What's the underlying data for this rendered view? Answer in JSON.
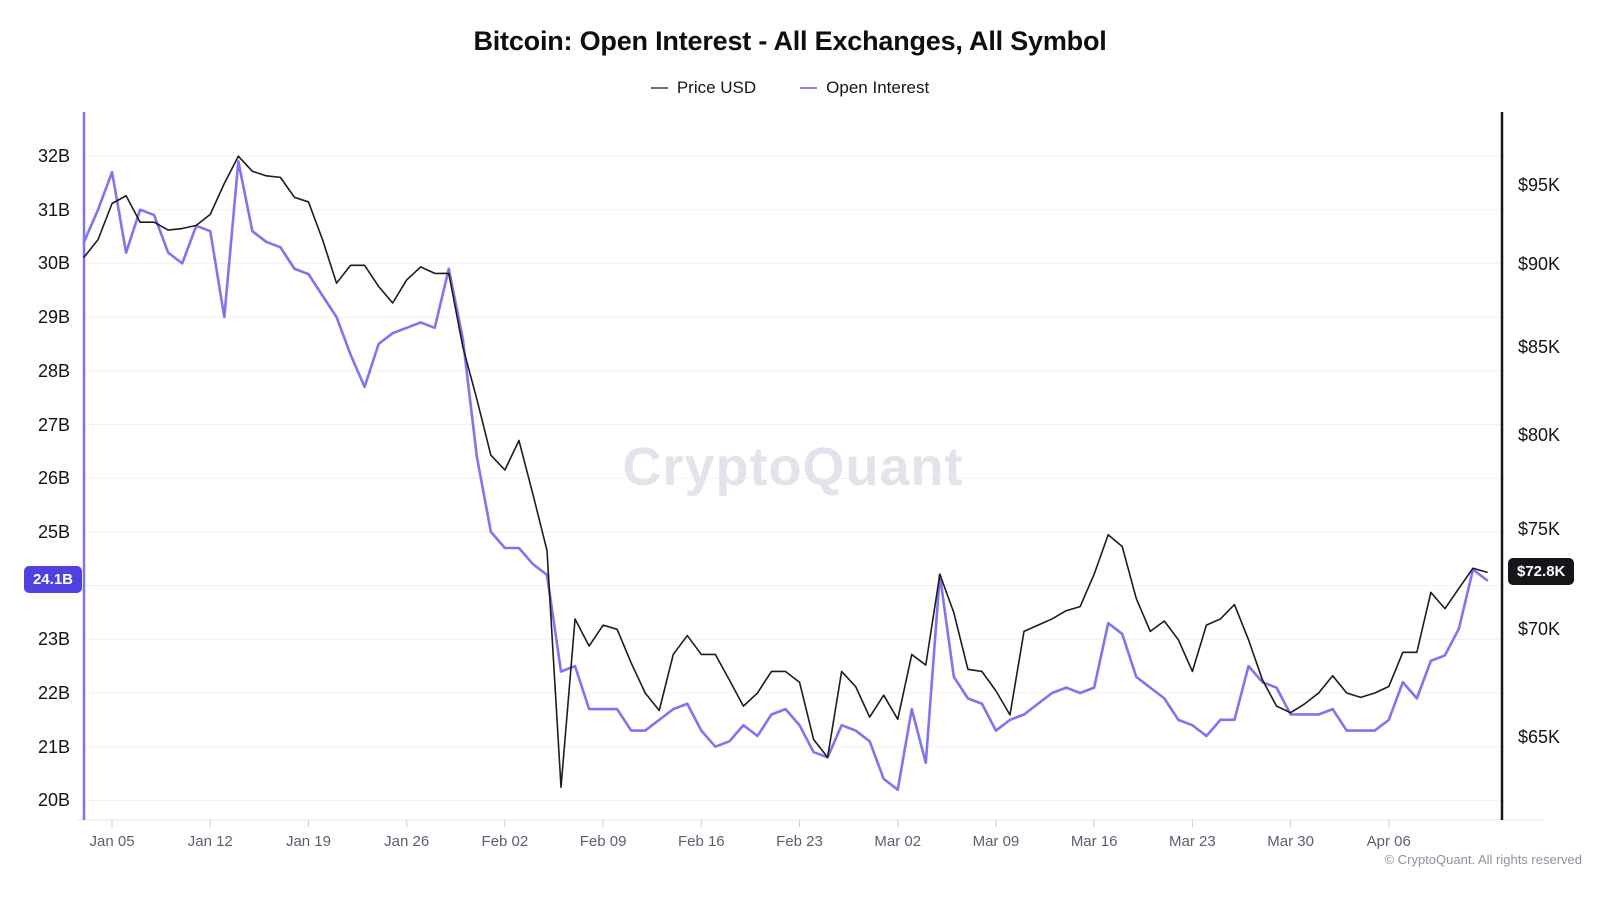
{
  "title": "Bitcoin: Open Interest - All Exchanges, All Symbol",
  "legend": [
    {
      "label": "Price USD",
      "color": "#6e6e78"
    },
    {
      "label": "Open Interest",
      "color": "#8a80f2"
    }
  ],
  "badges": {
    "open_interest": "24.1B",
    "price": "$72.8K"
  },
  "watermark": "CryptoQuant",
  "footer": "© CryptoQuant. All rights reserved",
  "colors": {
    "price_line": "#1c1c22",
    "open_interest_line": "#7f75ee",
    "open_interest_badge_bg": "#4f42e0",
    "price_badge_bg": "#15151a",
    "left_axis": "#7f75ee",
    "right_axis": "#17171c",
    "gridline": "#f1f1f6",
    "baseline": "#e8e8ee",
    "tick_mark": "#c9cbd4"
  },
  "chart_data": {
    "type": "line",
    "title": "Bitcoin: Open Interest - All Exchanges, All Symbol",
    "grid": "horizontal",
    "legend_position": "top-center",
    "x": [
      "Jan 03",
      "Jan 04",
      "Jan 05",
      "Jan 06",
      "Jan 07",
      "Jan 08",
      "Jan 09",
      "Jan 10",
      "Jan 11",
      "Jan 12",
      "Jan 13",
      "Jan 14",
      "Jan 15",
      "Jan 16",
      "Jan 17",
      "Jan 18",
      "Jan 19",
      "Jan 20",
      "Jan 21",
      "Jan 22",
      "Jan 23",
      "Jan 24",
      "Jan 25",
      "Jan 26",
      "Jan 27",
      "Jan 28",
      "Jan 29",
      "Jan 30",
      "Jan 31",
      "Feb 01",
      "Feb 02",
      "Feb 03",
      "Feb 04",
      "Feb 05",
      "Feb 06",
      "Feb 07",
      "Feb 08",
      "Feb 09",
      "Feb 10",
      "Feb 11",
      "Feb 12",
      "Feb 13",
      "Feb 14",
      "Feb 15",
      "Feb 16",
      "Feb 17",
      "Feb 18",
      "Feb 19",
      "Feb 20",
      "Feb 21",
      "Feb 22",
      "Feb 23",
      "Feb 24",
      "Feb 25",
      "Feb 26",
      "Feb 27",
      "Feb 28",
      "Mar 01",
      "Mar 02",
      "Mar 03",
      "Mar 04",
      "Mar 05",
      "Mar 06",
      "Mar 07",
      "Mar 08",
      "Mar 09",
      "Mar 10",
      "Mar 11",
      "Mar 12",
      "Mar 13",
      "Mar 14",
      "Mar 15",
      "Mar 16",
      "Mar 17",
      "Mar 18",
      "Mar 19",
      "Mar 20",
      "Mar 21",
      "Mar 22",
      "Mar 23",
      "Mar 24",
      "Mar 25",
      "Mar 26",
      "Mar 27",
      "Mar 28",
      "Mar 29",
      "Mar 30",
      "Mar 31",
      "Apr 01",
      "Apr 02",
      "Apr 03",
      "Apr 04",
      "Apr 05",
      "Apr 06",
      "Apr 07",
      "Apr 08",
      "Apr 09",
      "Apr 10",
      "Apr 11",
      "Apr 12",
      "Apr 13"
    ],
    "x_tick_labels": [
      "Jan 05",
      "Jan 12",
      "Jan 19",
      "Jan 26",
      "Feb 02",
      "Feb 09",
      "Feb 16",
      "Feb 23",
      "Mar 02",
      "Mar 09",
      "Mar 16",
      "Mar 23",
      "Mar 30",
      "Apr 06"
    ],
    "left_axis": {
      "name": "Open Interest",
      "unit": "billion USD",
      "scale": "linear",
      "range": [
        20,
        32
      ],
      "tick_values": [
        32,
        31,
        30,
        29,
        28,
        27,
        26,
        25,
        24,
        23,
        22,
        21,
        20
      ],
      "tick_labels": [
        "32B",
        "31B",
        "30B",
        "29B",
        "28B",
        "27B",
        "26B",
        "25B",
        "24B",
        "23B",
        "22B",
        "21B",
        "20B"
      ]
    },
    "right_axis": {
      "name": "Price USD",
      "unit": "thousand USD",
      "scale": "log",
      "range": [
        62,
        97
      ],
      "tick_values": [
        95,
        90,
        85,
        80,
        75,
        70,
        65
      ],
      "tick_labels": [
        "$95K",
        "$90K",
        "$85K",
        "$80K",
        "$75K",
        "$70K",
        "$65K"
      ]
    },
    "series": [
      {
        "name": "Price USD",
        "axis": "right",
        "unit": "K USD",
        "values": [
          90.4,
          91.5,
          93.8,
          94.3,
          92.6,
          92.6,
          92.1,
          92.2,
          92.4,
          93.1,
          95.1,
          96.9,
          95.9,
          95.6,
          95.5,
          94.2,
          93.9,
          91.5,
          88.8,
          89.9,
          89.9,
          88.6,
          87.6,
          89.0,
          89.8,
          89.4,
          89.4,
          85.0,
          82.0,
          78.9,
          78.1,
          79.7,
          76.8,
          73.9,
          62.8,
          70.5,
          69.2,
          70.2,
          70.0,
          68.4,
          67.0,
          66.2,
          68.8,
          69.7,
          68.8,
          68.8,
          67.6,
          66.4,
          67.0,
          68.0,
          68.0,
          67.5,
          64.9,
          64.1,
          68.0,
          67.3,
          65.9,
          66.9,
          65.8,
          68.8,
          68.3,
          72.7,
          70.8,
          68.1,
          68.0,
          67.1,
          66.0,
          69.9,
          70.2,
          70.5,
          70.9,
          71.1,
          72.7,
          74.7,
          74.1,
          71.5,
          69.9,
          70.4,
          69.5,
          68.0,
          70.2,
          70.5,
          71.2,
          69.5,
          67.6,
          66.4,
          66.1,
          66.5,
          67.0,
          67.8,
          67.0,
          66.8,
          67.0,
          67.3,
          68.9,
          68.9,
          71.8,
          71.0,
          72.0,
          73.0,
          72.8
        ]
      },
      {
        "name": "Open Interest",
        "axis": "left",
        "unit": "B USD",
        "values": [
          30.4,
          31.0,
          31.7,
          30.2,
          31.0,
          30.9,
          30.2,
          30.0,
          30.7,
          30.6,
          29.0,
          31.9,
          30.6,
          30.4,
          30.3,
          29.9,
          29.8,
          29.4,
          29.0,
          28.3,
          27.7,
          28.5,
          28.7,
          28.8,
          28.9,
          28.8,
          29.9,
          28.6,
          26.4,
          25.0,
          24.7,
          24.7,
          24.4,
          24.2,
          22.4,
          22.5,
          21.7,
          21.7,
          21.7,
          21.3,
          21.3,
          21.5,
          21.7,
          21.8,
          21.3,
          21.0,
          21.1,
          21.4,
          21.2,
          21.6,
          21.7,
          21.4,
          20.9,
          20.8,
          21.4,
          21.3,
          21.1,
          20.4,
          20.2,
          21.7,
          20.7,
          24.2,
          22.3,
          21.9,
          21.8,
          21.3,
          21.5,
          21.6,
          21.8,
          22.0,
          22.1,
          22.0,
          22.1,
          23.3,
          23.1,
          22.3,
          22.1,
          21.9,
          21.5,
          21.4,
          21.2,
          21.5,
          21.5,
          22.5,
          22.2,
          22.1,
          21.6,
          21.6,
          21.6,
          21.7,
          21.3,
          21.3,
          21.3,
          21.5,
          22.2,
          21.9,
          22.6,
          22.7,
          23.2,
          24.3,
          24.1
        ]
      }
    ],
    "last_values": {
      "price": "$72.8K",
      "open_interest": "24.1B"
    }
  }
}
